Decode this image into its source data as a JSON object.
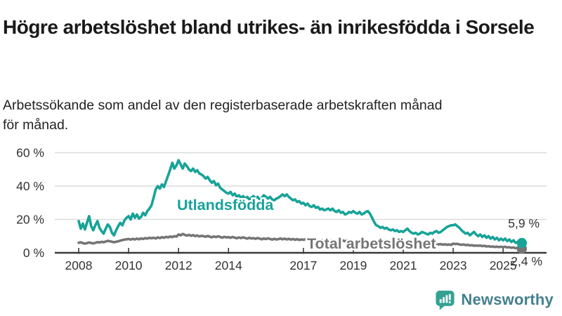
{
  "header": {
    "title": "Högre arbetslöshet bland utrikes- än inrikesfödda i Sorsele",
    "subtitle": "Arbetssökande som andel av den registerbaserade arbetskraften månad för månad."
  },
  "chart_data": {
    "type": "line",
    "unit": "%",
    "x_start_year": 2008,
    "x_interval": "monthly",
    "x_end_label_period": "2025-10",
    "grid": true,
    "ylim": [
      0,
      62
    ],
    "y_ticks": [
      0,
      20,
      40,
      60
    ],
    "y_tick_labels": [
      "0 %",
      "20 %",
      "40 %",
      "60 %"
    ],
    "x_tick_years": [
      2008,
      2010,
      2012,
      2014,
      2017,
      2019,
      2021,
      2023,
      2025
    ],
    "x_tick_labels": [
      "2008",
      "2010",
      "2012",
      "2014",
      "2017",
      "2019",
      "2021",
      "2023",
      "2025"
    ],
    "axis_color": "#3a3a3a",
    "grid_color": "#dcdcdc",
    "tick_text_color": "#333333",
    "end_label_color": "#333333",
    "series": [
      {
        "name": "Utlandsfödda",
        "color": "#17A398",
        "end_label": "5,9 %",
        "end_value": 5.9,
        "values": [
          19.0,
          14.5,
          17.5,
          14.0,
          18.0,
          22.0,
          16.0,
          13.5,
          16.5,
          19.0,
          15.0,
          13.0,
          11.5,
          14.5,
          17.0,
          15.5,
          12.0,
          10.5,
          13.5,
          16.0,
          18.0,
          16.5,
          19.5,
          21.0,
          22.0,
          20.0,
          23.5,
          21.0,
          23.0,
          20.5,
          21.5,
          24.0,
          22.5,
          25.0,
          26.5,
          28.5,
          33.0,
          38.0,
          40.0,
          38.5,
          41.0,
          39.5,
          43.0,
          46.5,
          50.0,
          54.0,
          50.5,
          52.5,
          55.5,
          53.0,
          50.5,
          53.5,
          52.0,
          50.0,
          49.0,
          50.5,
          48.5,
          49.5,
          47.5,
          47.0,
          46.0,
          44.5,
          45.5,
          43.5,
          42.0,
          43.0,
          40.5,
          41.5,
          39.0,
          38.0,
          37.0,
          36.0,
          35.5,
          36.5,
          34.5,
          35.5,
          33.5,
          34.5,
          33.0,
          34.0,
          32.5,
          33.5,
          32.0,
          33.0,
          34.0,
          32.5,
          33.5,
          32.0,
          33.0,
          34.5,
          33.5,
          32.5,
          33.5,
          32.0,
          31.5,
          32.5,
          33.0,
          34.0,
          35.0,
          34.0,
          35.0,
          33.5,
          32.5,
          31.5,
          32.0,
          30.5,
          31.0,
          29.5,
          30.0,
          28.5,
          29.5,
          28.0,
          27.5,
          28.5,
          27.0,
          27.5,
          26.0,
          26.5,
          25.5,
          26.0,
          26.5,
          25.5,
          26.5,
          25.0,
          24.5,
          25.5,
          24.0,
          24.5,
          23.0,
          23.5,
          24.5,
          24.0,
          25.0,
          24.0,
          23.5,
          24.5,
          23.0,
          23.5,
          24.5,
          25.0,
          23.5,
          21.0,
          18.5,
          16.5,
          16.0,
          15.0,
          15.5,
          14.5,
          15.0,
          14.0,
          13.5,
          14.0,
          13.0,
          13.5,
          12.5,
          13.0,
          12.5,
          13.5,
          14.5,
          13.0,
          12.0,
          11.5,
          12.0,
          11.0,
          11.5,
          12.5,
          12.0,
          11.5,
          11.0,
          12.0,
          11.5,
          12.5,
          13.0,
          12.0,
          12.5,
          13.5,
          14.5,
          15.5,
          16.0,
          16.5,
          16.5,
          17.0,
          16.0,
          15.0,
          13.5,
          12.5,
          11.5,
          12.0,
          10.5,
          11.5,
          12.5,
          11.0,
          10.0,
          11.0,
          9.5,
          10.5,
          9.0,
          10.0,
          8.5,
          9.5,
          8.0,
          9.0,
          7.5,
          8.5,
          7.5,
          8.5,
          7.0,
          8.0,
          6.5,
          7.5,
          6.0,
          6.5,
          6.2,
          5.9
        ]
      },
      {
        "name": "Total arbetslöshet",
        "color": "#757575",
        "end_label": "2,4 %",
        "end_value": 2.4,
        "values": [
          6.0,
          6.3,
          5.8,
          5.5,
          5.8,
          6.2,
          5.9,
          5.6,
          6.0,
          6.4,
          6.2,
          6.6,
          6.3,
          6.8,
          7.2,
          6.9,
          6.6,
          6.3,
          6.6,
          6.9,
          7.3,
          7.6,
          7.9,
          8.1,
          8.3,
          7.9,
          8.4,
          8.0,
          8.5,
          8.1,
          8.6,
          8.3,
          8.8,
          8.5,
          9.0,
          8.7,
          9.0,
          8.6,
          9.2,
          8.8,
          9.4,
          9.0,
          9.6,
          9.2,
          9.8,
          9.4,
          10.0,
          9.7,
          11.0,
          10.5,
          11.3,
          10.8,
          10.3,
          10.8,
          10.2,
          10.6,
          10.0,
          10.4,
          9.8,
          10.2,
          10.0,
          9.6,
          10.1,
          9.7,
          9.3,
          9.8,
          9.4,
          9.9,
          9.5,
          9.1,
          9.6,
          9.2,
          9.4,
          9.0,
          9.5,
          9.1,
          8.7,
          9.2,
          8.8,
          9.3,
          8.9,
          8.5,
          9.0,
          8.6,
          8.8,
          8.4,
          8.9,
          8.5,
          8.1,
          8.6,
          8.2,
          8.7,
          8.3,
          7.9,
          8.4,
          8.0,
          8.2,
          8.6,
          8.1,
          8.5,
          8.0,
          8.4,
          7.9,
          8.3,
          7.8,
          8.2,
          7.7,
          8.0,
          7.8,
          8.1,
          7.6,
          8.0,
          7.5,
          7.9,
          7.4,
          7.8,
          7.3,
          7.7,
          7.2,
          7.5,
          7.3,
          7.7,
          7.2,
          7.6,
          7.1,
          7.5,
          7.0,
          7.4,
          6.9,
          7.3,
          6.8,
          7.1,
          6.9,
          7.2,
          6.7,
          7.1,
          6.6,
          7.0,
          6.5,
          6.9,
          6.4,
          6.8,
          6.6,
          7.0,
          7.2,
          7.5,
          7.8,
          7.4,
          7.6,
          7.2,
          7.4,
          7.0,
          7.2,
          6.8,
          7.0,
          6.6,
          6.8,
          6.4,
          6.6,
          6.2,
          6.4,
          6.0,
          6.2,
          5.8,
          6.0,
          5.6,
          5.8,
          5.5,
          5.7,
          5.3,
          5.5,
          5.2,
          5.4,
          5.0,
          5.2,
          4.9,
          5.1,
          4.8,
          5.0,
          4.7,
          5.5,
          5.2,
          5.4,
          5.0,
          4.8,
          5.0,
          4.6,
          4.8,
          4.4,
          4.6,
          4.2,
          4.4,
          4.2,
          4.4,
          4.0,
          4.2,
          3.8,
          4.0,
          3.6,
          3.8,
          3.5,
          3.7,
          3.4,
          3.6,
          3.4,
          3.6,
          3.2,
          3.4,
          3.0,
          3.2,
          2.8,
          3.0,
          2.6,
          2.4
        ]
      }
    ]
  },
  "footer": {
    "brand": "Newsworthy",
    "brand_color": "#44808F",
    "icon": "bar-chart-speech-bubble-icon",
    "icon_color": "#33A293"
  }
}
